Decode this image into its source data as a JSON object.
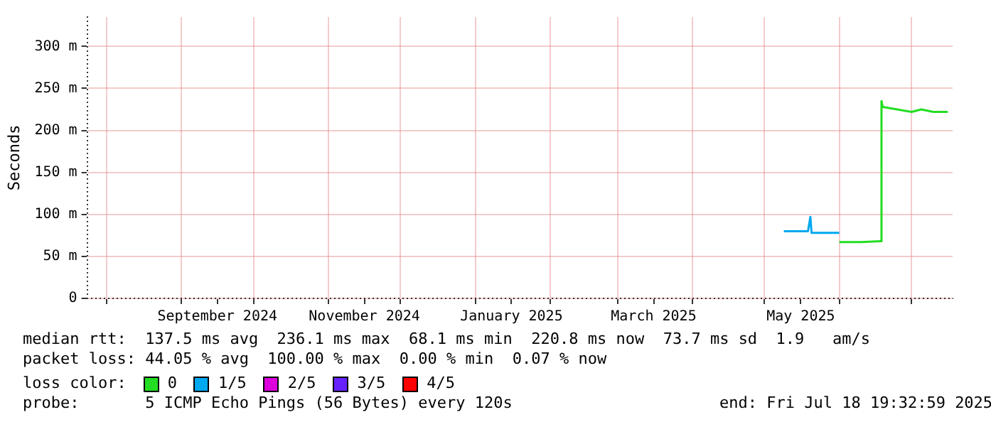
{
  "chart_data": {
    "type": "line",
    "ylabel": "Seconds",
    "legend_title": "loss color:",
    "legend": "bottom",
    "grid": true,
    "marker": "none",
    "line_style": "solid",
    "xlim": [
      "2024-07-24",
      "2025-07-18"
    ],
    "xticks": [
      {
        "value": "2024-08-01",
        "label": null
      },
      {
        "value": "2024-09-01",
        "label": null
      },
      {
        "value": "2024-09-16",
        "label": "September 2024"
      },
      {
        "value": "2024-10-01",
        "label": null
      },
      {
        "value": "2024-11-01",
        "label": null
      },
      {
        "value": "2024-11-16",
        "label": "November 2024"
      },
      {
        "value": "2024-12-01",
        "label": null
      },
      {
        "value": "2025-01-01",
        "label": null
      },
      {
        "value": "2025-01-16",
        "label": "January 2025"
      },
      {
        "value": "2025-02-01",
        "label": null
      },
      {
        "value": "2025-03-01",
        "label": null
      },
      {
        "value": "2025-03-16",
        "label": "March 2025"
      },
      {
        "value": "2025-04-01",
        "label": null
      },
      {
        "value": "2025-05-01",
        "label": null
      },
      {
        "value": "2025-05-16",
        "label": "May 2025"
      },
      {
        "value": "2025-06-01",
        "label": null
      },
      {
        "value": "2025-07-01",
        "label": null
      }
    ],
    "ylim": [
      0,
      335
    ],
    "yticks": [
      {
        "value": 0,
        "label": "0"
      },
      {
        "value": 50,
        "label": "50 m"
      },
      {
        "value": 100,
        "label": "100 m"
      },
      {
        "value": 150,
        "label": "150 m"
      },
      {
        "value": 200,
        "label": "200 m"
      },
      {
        "value": 250,
        "label": "250 m"
      },
      {
        "value": 300,
        "label": "300 m"
      }
    ],
    "series": [
      {
        "name": "0",
        "color": "#22dd22",
        "x": [
          "2025-06-01",
          "2025-06-10",
          "2025-06-18",
          "2025-06-18T12:00",
          "2025-06-19",
          "2025-06-25",
          "2025-07-01",
          "2025-07-05",
          "2025-07-10",
          "2025-07-16"
        ],
        "values": [
          67,
          67,
          68,
          235,
          228,
          225,
          222,
          225,
          222,
          222
        ]
      },
      {
        "name": "1/5",
        "color": "#00a8f0",
        "x": [
          "2025-05-09",
          "2025-05-19",
          "2025-05-20",
          "2025-05-20T12:00",
          "2025-06-01"
        ],
        "values": [
          80,
          80,
          97,
          78,
          78
        ]
      },
      {
        "name": "2/5",
        "color": "#dd00dd"
      },
      {
        "name": "3/5",
        "color": "#6622ff"
      },
      {
        "name": "4/5",
        "color": "#ff0000"
      }
    ],
    "annotations": [
      "median rtt:  137.5 ms avg  236.1 ms max  68.1 ms min  220.8 ms now  73.7 ms sd  1.9   am/s",
      "packet loss: 44.05 % avg  100.00 % max  0.00 % min  0.07 % now",
      "probe:       5 ICMP Echo Pings (56 Bytes) every 120s",
      "end: Fri Jul 18 19:32:59 2025"
    ]
  }
}
